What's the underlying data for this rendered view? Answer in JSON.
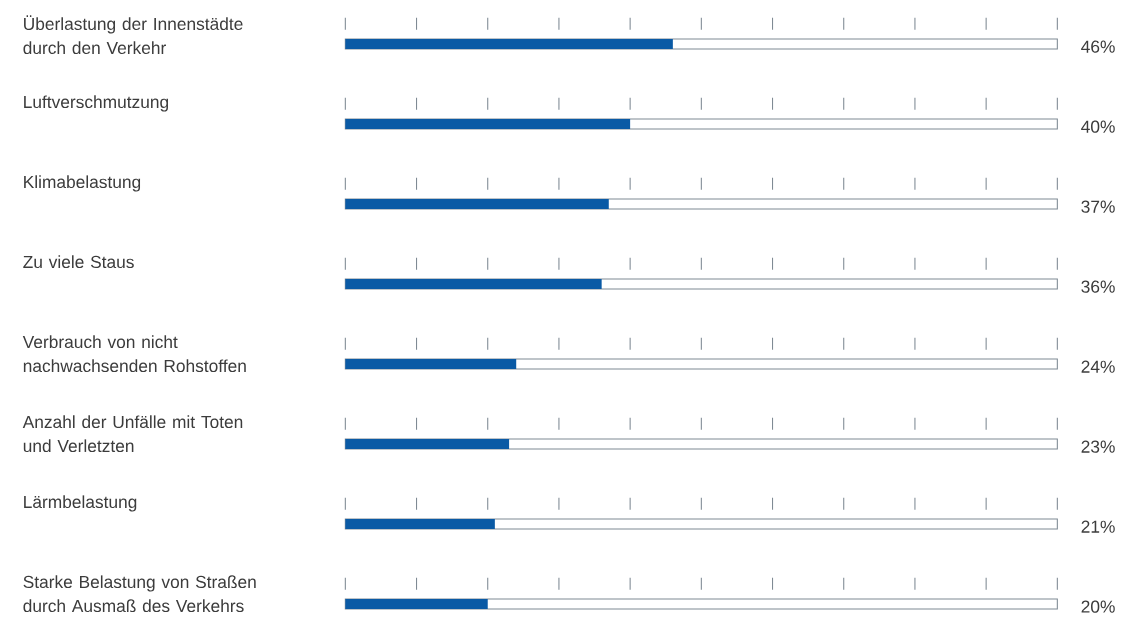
{
  "chart_data": {
    "type": "bar",
    "orientation": "horizontal",
    "categories": [
      "Überlastung der Innenstädte durch den Verkehr",
      "Luftverschmutzung",
      "Klimabelastung",
      "Zu viele Staus",
      "Verbrauch von nicht nachwachsenden Rohstoffen",
      "Anzahl der Unfälle mit Toten und Verletzten",
      "Lärmbelastung",
      "Starke Belastung von Straßen durch Ausmaß des Verkehrs"
    ],
    "values": [
      46,
      40,
      37,
      36,
      24,
      23,
      21,
      20
    ],
    "value_labels": [
      "46%",
      "40%",
      "37%",
      "36%",
      "24%",
      "23%",
      "21%",
      "20%"
    ],
    "color": "#0a5aa5",
    "xlim": [
      0,
      100
    ],
    "xticks": [
      {
        "value": 0,
        "label": null
      },
      {
        "value": 10,
        "label": null
      },
      {
        "value": 20,
        "label": null
      },
      {
        "value": 30,
        "label": null
      },
      {
        "value": 40,
        "label": null
      },
      {
        "value": 50,
        "label": null
      },
      {
        "value": 60,
        "label": null
      },
      {
        "value": 70,
        "label": null
      },
      {
        "value": 80,
        "label": null
      },
      {
        "value": 90,
        "label": null
      },
      {
        "value": 100,
        "label": null
      }
    ]
  }
}
